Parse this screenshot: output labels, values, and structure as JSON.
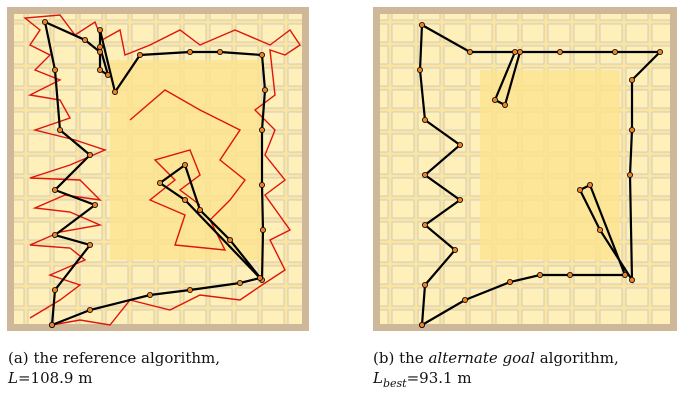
{
  "figure": {
    "panels": [
      {
        "label": "(a)",
        "text": "the reference algorithm,",
        "symbol": "L",
        "value": "=108.9 m"
      },
      {
        "label": "(b)",
        "text_before": "the",
        "emphasis": "alternate goal",
        "text_after": "algorithm,",
        "symbol": "L",
        "subscript": "best",
        "value": "=93.1 m"
      }
    ]
  }
}
